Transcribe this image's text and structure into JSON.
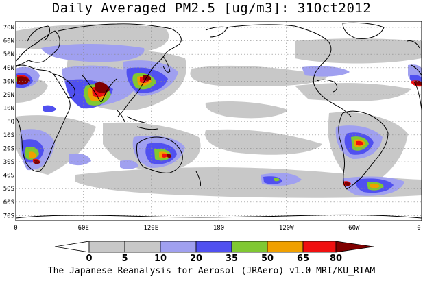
{
  "title": "Daily Averaged PM2.5 [ug/m3]: 31Oct2012",
  "credit": "The Japanese Reanalysis for Aerosol (JRAero) v1.0 MRI/KU_RIAM",
  "lat_labels": [
    "70N",
    "60N",
    "50N",
    "40N",
    "30N",
    "20N",
    "10N",
    "EQ",
    "10S",
    "20S",
    "30S",
    "40S",
    "50S",
    "60S",
    "70S"
  ],
  "lon_labels": [
    "0",
    "60E",
    "120E",
    "180",
    "120W",
    "60W",
    "0"
  ],
  "colorbar": {
    "levels": [
      "0",
      "5",
      "10",
      "20",
      "35",
      "50",
      "65",
      "80"
    ],
    "colors": [
      "#ffffff",
      "#c8c8c8",
      "#a0a0f0",
      "#5050f0",
      "#80c832",
      "#f0a000",
      "#f01010",
      "#800000"
    ]
  }
}
